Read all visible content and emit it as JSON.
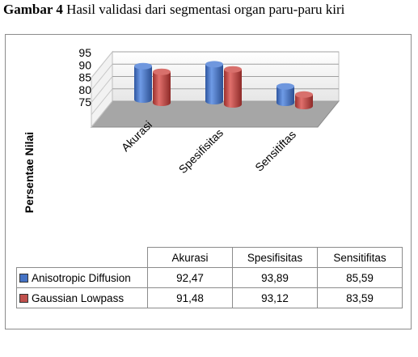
{
  "caption": {
    "label": "Gambar 4",
    "text": "Hasil validasi dari segmentasi organ paru-paru kiri"
  },
  "chart_data": {
    "type": "bar",
    "style": "3d-cylinder",
    "ylabel": "Persentae Nilai",
    "ylim": [
      75,
      95
    ],
    "yticks": [
      "95",
      "90",
      "85",
      "80",
      "75"
    ],
    "grid": true,
    "legend_placement": "data-table",
    "categories": [
      "Akurasi",
      "Spesifisitas",
      "Sensitiftas"
    ],
    "series": [
      {
        "name": "Anisotropic Diffusion",
        "color": "#4472c4",
        "values": [
          92.47,
          93.89,
          85.59
        ]
      },
      {
        "name": "Gaussian Lowpass",
        "color": "#c0504d",
        "values": [
          91.48,
          93.12,
          83.59
        ]
      }
    ],
    "table": {
      "headers": [
        "Akurasi",
        "Spesifisitas",
        "Sensitifitas"
      ],
      "rows": [
        {
          "label": "Anisotropic Diffusion",
          "color": "#4472c4",
          "cells": [
            "92,47",
            "93,89",
            "85,59"
          ]
        },
        {
          "label": "Gaussian Lowpass",
          "color": "#c0504d",
          "cells": [
            "91,48",
            "93,12",
            "83,59"
          ]
        }
      ]
    }
  }
}
